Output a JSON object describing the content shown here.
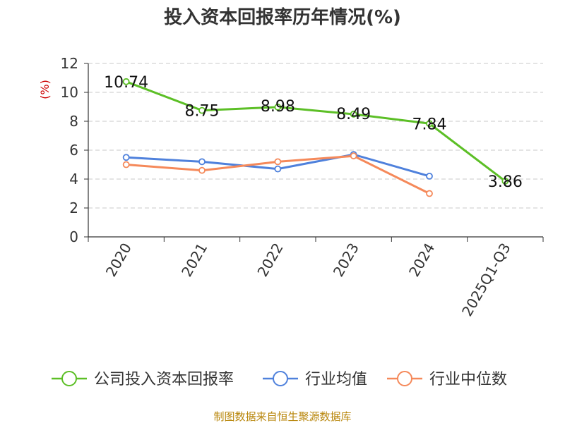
{
  "chart_data": {
    "type": "line",
    "title": "投入资本回报率历年情况(%)",
    "unit_label": "(%)",
    "categories": [
      "2020",
      "2021",
      "2022",
      "2023",
      "2024",
      "2025Q1-Q3"
    ],
    "ylim": [
      0,
      12
    ],
    "yticks": [
      0,
      2,
      4,
      6,
      8,
      10,
      12
    ],
    "grid": true,
    "legend_position": "bottom",
    "series": [
      {
        "name": "公司投入资本回报率",
        "color": "#5cbf26",
        "values": [
          10.74,
          8.75,
          8.98,
          8.49,
          7.84,
          3.86
        ],
        "show_labels": true
      },
      {
        "name": "行业均值",
        "color": "#4f81dc",
        "values": [
          5.5,
          5.2,
          4.7,
          5.7,
          4.2,
          null
        ],
        "show_labels": false
      },
      {
        "name": "行业中位数",
        "color": "#f5895a",
        "values": [
          5.0,
          4.6,
          5.2,
          5.6,
          3.0,
          null
        ],
        "show_labels": false
      }
    ],
    "data_labels": [
      "10.74",
      "8.75",
      "8.98",
      "8.49",
      "7.84",
      "3.86"
    ],
    "source": "制图数据来自恒生聚源数据库"
  }
}
